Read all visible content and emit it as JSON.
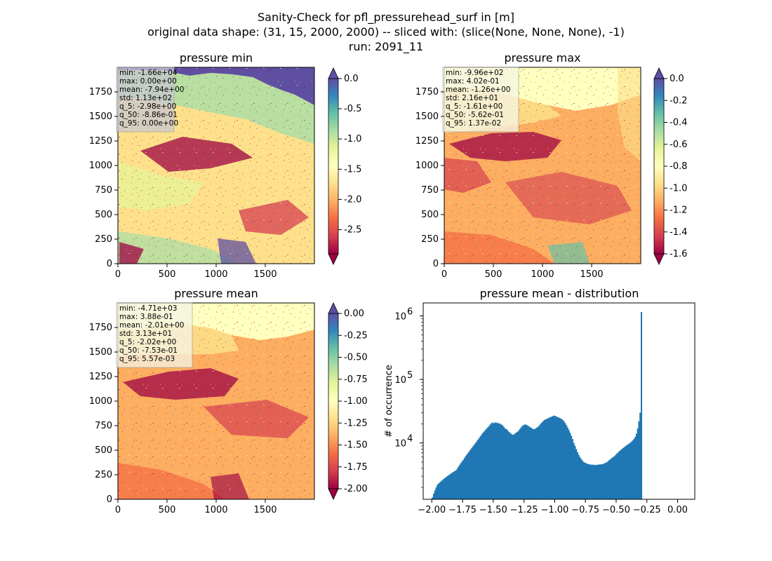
{
  "figure": {
    "title_lines": [
      "Sanity-Check for pfl_pressurehead_surf in [m]",
      "original data shape: (31, 15, 2000, 2000) -- sliced with: (slice(None, None, None), -1)",
      "run: 2091_11"
    ]
  },
  "colormap": {
    "name": "Spectral",
    "stops": [
      "#9e0142",
      "#d53e4f",
      "#f46d43",
      "#fdae61",
      "#fee08b",
      "#ffffbf",
      "#e6f598",
      "#abdda4",
      "#66c2a5",
      "#3288bd",
      "#5e4fa2"
    ]
  },
  "chart_data": [
    {
      "type": "heatmap",
      "title": "pressure min",
      "xticks": [
        "0",
        "500",
        "1000",
        "1500"
      ],
      "yticks": [
        "0",
        "250",
        "500",
        "750",
        "1000",
        "1250",
        "1500",
        "1750"
      ],
      "colorbar": {
        "vmin": -2.9,
        "vmax": 0.0,
        "ticks": [
          "0.0",
          "-0.5",
          "-1.0",
          "-1.5",
          "-2.0",
          "-2.5"
        ],
        "tick_values": [
          0.0,
          -0.5,
          -1.0,
          -1.5,
          -2.0,
          -2.5
        ],
        "extend": "both"
      },
      "stats": [
        "min: -1.66e+04",
        "max: 0.00e+00",
        "mean: -7.94e+00",
        "std: 1.13e+02",
        "q_5: -2.98e+00",
        "q_50: -8.86e-01",
        "q_95: 0.00e+00"
      ]
    },
    {
      "type": "heatmap",
      "title": "pressure max",
      "xticks": [
        "0",
        "500",
        "1000",
        "1500"
      ],
      "yticks": [
        "0",
        "250",
        "500",
        "750",
        "1000",
        "1250",
        "1500",
        "1750"
      ],
      "colorbar": {
        "vmin": -1.6,
        "vmax": 0.0,
        "ticks": [
          "0.0",
          "-0.2",
          "-0.4",
          "-0.6",
          "-0.8",
          "-1.0",
          "-1.2",
          "-1.4",
          "-1.6"
        ],
        "tick_values": [
          0.0,
          -0.2,
          -0.4,
          -0.6,
          -0.8,
          -1.0,
          -1.2,
          -1.4,
          -1.6
        ],
        "extend": "both"
      },
      "stats": [
        "min: -9.96e+02",
        "max: 4.02e-01",
        "mean: -1.26e+00",
        "std: 2.16e+01",
        "q_5: -1.61e+00",
        "q_50: -5.62e-01",
        "q_95: 1.37e-02"
      ]
    },
    {
      "type": "heatmap",
      "title": "pressure mean",
      "xticks": [
        "0",
        "500",
        "1000",
        "1500"
      ],
      "yticks": [
        "0",
        "250",
        "500",
        "750",
        "1000",
        "1250",
        "1500",
        "1750"
      ],
      "colorbar": {
        "vmin": -2.0,
        "vmax": 0.0,
        "ticks": [
          "0.00",
          "-0.25",
          "-0.50",
          "-0.75",
          "-1.00",
          "-1.25",
          "-1.50",
          "-1.75",
          "-2.00"
        ],
        "tick_values": [
          0.0,
          -0.25,
          -0.5,
          -0.75,
          -1.0,
          -1.25,
          -1.5,
          -1.75,
          -2.0
        ],
        "extend": "both"
      },
      "stats": [
        "min: -4.71e+03",
        "max: 3.88e-01",
        "mean: -2.01e+00",
        "std: 3.13e+01",
        "q_5: -2.02e+00",
        "q_50: -7.53e-01",
        "q_95: 5.57e-03"
      ]
    },
    {
      "type": "histogram",
      "title": "pressure mean - distribution",
      "ylabel": "# of occurrence",
      "yscale": "log",
      "xlim": [
        -2.07,
        0.14
      ],
      "ylim": [
        1300,
        1600000
      ],
      "xticks": [
        "−2.00",
        "−1.75",
        "−1.50",
        "−1.25",
        "−1.00",
        "−0.75",
        "−0.50",
        "−0.25",
        "0.00"
      ],
      "xtick_values": [
        -2.0,
        -1.75,
        -1.5,
        -1.25,
        -1.0,
        -0.75,
        -0.5,
        -0.25,
        0.0
      ],
      "ytick_exponents": [
        "6",
        "5",
        "4"
      ],
      "ytick_values": [
        1000000,
        100000,
        10000
      ],
      "bar_color": "#1f77b4",
      "bin_start": -2.0,
      "bin_width": 0.01,
      "counts": [
        1400,
        1600,
        1800,
        2000,
        2200,
        2300,
        2400,
        2500,
        2600,
        2700,
        2800,
        2900,
        3000,
        3100,
        3200,
        3300,
        3400,
        3500,
        3600,
        3700,
        3900,
        4200,
        4500,
        4800,
        5100,
        5400,
        5800,
        6200,
        6600,
        7000,
        7400,
        7900,
        8400,
        8900,
        9400,
        10000,
        10600,
        11300,
        12000,
        12800,
        13600,
        14400,
        15200,
        16000,
        16800,
        17600,
        18500,
        19500,
        20500,
        21000,
        20500,
        21000,
        21000,
        20500,
        20500,
        20000,
        19500,
        19000,
        18000,
        17000,
        16500,
        16000,
        15000,
        14500,
        14000,
        13500,
        13500,
        14000,
        14500,
        15000,
        15500,
        16500,
        17500,
        18500,
        19000,
        19500,
        19500,
        19000,
        18500,
        18000,
        17500,
        17000,
        16500,
        16500,
        17000,
        17500,
        18000,
        19000,
        20000,
        21000,
        22000,
        23000,
        23500,
        24000,
        24500,
        25000,
        25500,
        26000,
        26500,
        27000,
        26500,
        26000,
        25500,
        25000,
        24500,
        24000,
        23000,
        22000,
        20500,
        19000,
        17500,
        16000,
        14500,
        13000,
        11500,
        10000,
        9000,
        8000,
        7200,
        6500,
        6000,
        5600,
        5300,
        5000,
        4900,
        4800,
        4700,
        4650,
        4600,
        4550,
        4550,
        4550,
        4500,
        4500,
        4550,
        4550,
        4600,
        4600,
        4650,
        4700,
        4800,
        4900,
        5000,
        5200,
        5400,
        5600,
        5800,
        6000,
        6200,
        6500,
        6800,
        7100,
        7400,
        7700,
        8000,
        8300,
        8600,
        8900,
        9200,
        9500,
        9800,
        10100,
        10500,
        11000,
        11600,
        12500,
        14000,
        17000,
        22000,
        30000,
        1150000
      ]
    }
  ]
}
